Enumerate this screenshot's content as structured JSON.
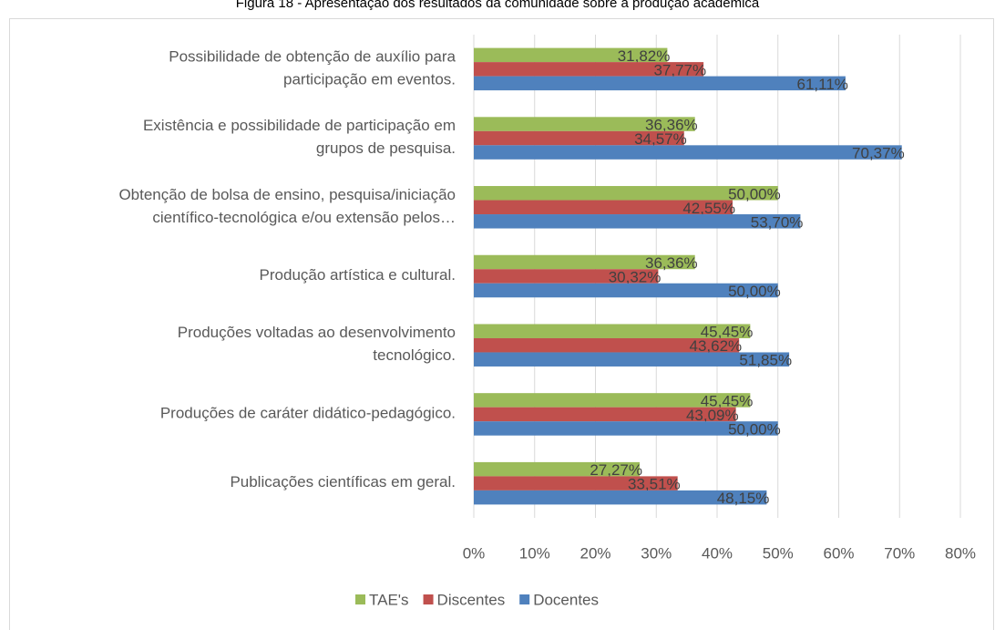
{
  "chart_data": {
    "type": "bar",
    "orientation": "horizontal",
    "title": "Figura 18 - Apresentação dos resultados da comunidade sobre a produção acadêmica",
    "categories": [
      "Possibilidade de obtenção de auxílio para\nparticipação em eventos.",
      "Existência e possibilidade de participação em\ngrupos de pesquisa.",
      "Obtenção de bolsa de ensino, pesquisa/iniciação\ncientífico-tecnológica e/ou extensão pelos…",
      "Produção artística e cultural.",
      "Produções voltadas ao desenvolvimento\ntecnológico.",
      "Produções de caráter didático-pedagógico.",
      "Publicações científicas em geral."
    ],
    "series": [
      {
        "name": "TAE's",
        "color": "#9bbb59",
        "values": [
          31.82,
          36.36,
          50.0,
          36.36,
          45.45,
          45.45,
          27.27
        ],
        "value_labels": [
          "31,82%",
          "36,36%",
          "50,00%",
          "36,36%",
          "45,45%",
          "45,45%",
          "27,27%"
        ]
      },
      {
        "name": "Discentes",
        "color": "#c0504d",
        "values": [
          37.77,
          34.57,
          42.55,
          30.32,
          43.62,
          43.09,
          33.51
        ],
        "value_labels": [
          "37,77%",
          "34,57%",
          "42,55%",
          "30,32%",
          "43,62%",
          "43,09%",
          "33,51%"
        ]
      },
      {
        "name": "Docentes",
        "color": "#4f81bd",
        "values": [
          61.11,
          70.37,
          53.7,
          50.0,
          51.85,
          50.0,
          48.15
        ],
        "value_labels": [
          "61,11%",
          "70,37%",
          "53,70%",
          "50,00%",
          "51,85%",
          "50,00%",
          "48,15%"
        ]
      }
    ],
    "xlim": [
      0,
      80
    ],
    "xticks": [
      {
        "value": 0,
        "label": "0%"
      },
      {
        "value": 10,
        "label": "10%"
      },
      {
        "value": 20,
        "label": "20%"
      },
      {
        "value": 30,
        "label": "30%"
      },
      {
        "value": 40,
        "label": "40%"
      },
      {
        "value": 50,
        "label": "50%"
      },
      {
        "value": 60,
        "label": "60%"
      },
      {
        "value": 70,
        "label": "70%"
      },
      {
        "value": 80,
        "label": "80%"
      }
    ],
    "grid": true,
    "legend": "bottom"
  }
}
